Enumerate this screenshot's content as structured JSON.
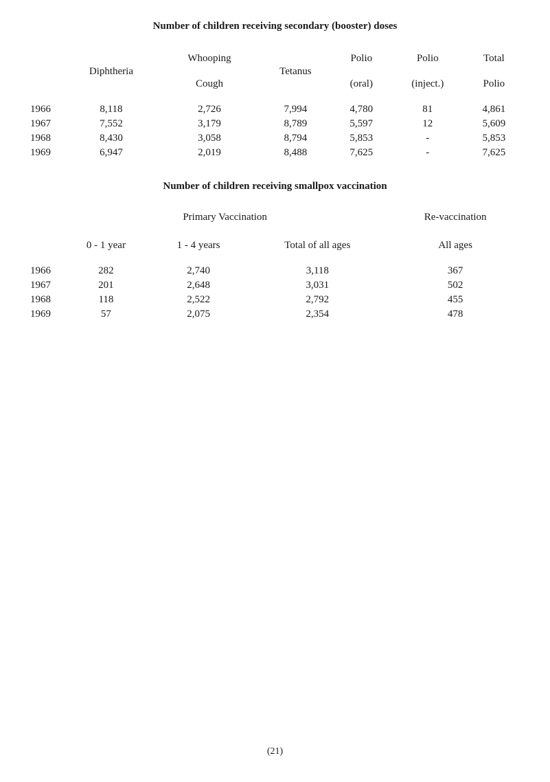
{
  "title1": "Number of children receiving secondary (booster) doses",
  "table1": {
    "headers": {
      "h1": "Diphtheria",
      "h2a": "Whooping",
      "h2b": "Cough",
      "h3": "Tetanus",
      "h4a": "Polio",
      "h4b": "(oral)",
      "h5a": "Polio",
      "h5b": "(inject.)",
      "h6a": "Total",
      "h6b": "Polio"
    },
    "rows": [
      {
        "year": "1966",
        "dip": "8,118",
        "wc": "2,726",
        "tet": "7,994",
        "poral": "4,780",
        "pinj": "81",
        "ptot": "4,861"
      },
      {
        "year": "1967",
        "dip": "7,552",
        "wc": "3,179",
        "tet": "8,789",
        "poral": "5,597",
        "pinj": "12",
        "ptot": "5,609"
      },
      {
        "year": "1968",
        "dip": "8,430",
        "wc": "3,058",
        "tet": "8,794",
        "poral": "5,853",
        "pinj": "-",
        "ptot": "5,853"
      },
      {
        "year": "1969",
        "dip": "6,947",
        "wc": "2,019",
        "tet": "8,488",
        "poral": "7,625",
        "pinj": "-",
        "ptot": "7,625"
      }
    ]
  },
  "title2": "Number of children receiving smallpox vaccination",
  "table2": {
    "headers": {
      "primary": "Primary Vaccination",
      "revac": "Re-vaccination",
      "s1": "0 - 1 year",
      "s2": "1 - 4 years",
      "s3": "Total of all ages",
      "s4": "All ages"
    },
    "rows": [
      {
        "year": "1966",
        "c1": "282",
        "c2": "2,740",
        "c3": "3,118",
        "c4": "367"
      },
      {
        "year": "1967",
        "c1": "201",
        "c2": "2,648",
        "c3": "3,031",
        "c4": "502"
      },
      {
        "year": "1968",
        "c1": "118",
        "c2": "2,522",
        "c3": "2,792",
        "c4": "455"
      },
      {
        "year": "1969",
        "c1": "57",
        "c2": "2,075",
        "c3": "2,354",
        "c4": "478"
      }
    ]
  },
  "pageNum": "(21)"
}
